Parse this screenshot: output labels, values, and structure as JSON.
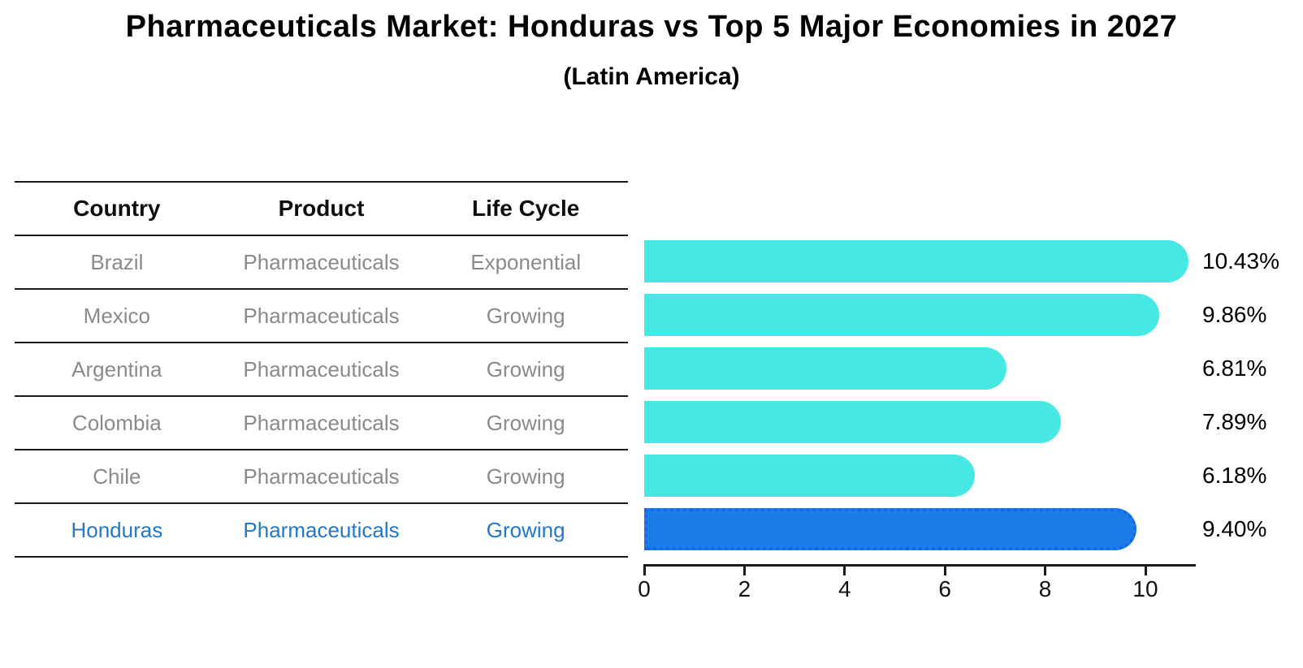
{
  "title": "Pharmaceuticals Market: Honduras vs Top 5 Major Economies in 2027",
  "subtitle": "(Latin America)",
  "table": {
    "headers": [
      "Country",
      "Product",
      "Life Cycle"
    ],
    "rows": [
      {
        "country": "Brazil",
        "product": "Pharmaceuticals",
        "life_cycle": "Exponential",
        "highlighted": false
      },
      {
        "country": "Mexico",
        "product": "Pharmaceuticals",
        "life_cycle": "Growing",
        "highlighted": false
      },
      {
        "country": "Argentina",
        "product": "Pharmaceuticals",
        "life_cycle": "Growing",
        "highlighted": false
      },
      {
        "country": "Colombia",
        "product": "Pharmaceuticals",
        "life_cycle": "Growing",
        "highlighted": false
      },
      {
        "country": "Chile",
        "product": "Pharmaceuticals",
        "life_cycle": "Growing",
        "highlighted": false
      },
      {
        "country": "Honduras",
        "product": "Pharmaceuticals",
        "life_cycle": "Growing",
        "highlighted": true
      }
    ]
  },
  "chart_data": {
    "type": "bar",
    "orientation": "horizontal",
    "title": "Pharmaceuticals Market: Honduras vs Top 5 Major Economies in 2027 (Latin America)",
    "categories": [
      "Brazil",
      "Mexico",
      "Argentina",
      "Colombia",
      "Chile",
      "Honduras"
    ],
    "values": [
      10.43,
      9.86,
      6.81,
      7.89,
      6.18,
      9.4
    ],
    "value_labels": [
      "10.43%",
      "9.86%",
      "6.81%",
      "7.89%",
      "6.18%",
      "9.40%"
    ],
    "unit": "percent",
    "xlim": [
      0,
      11
    ],
    "x_ticks": [
      "0",
      "2",
      "4",
      "6",
      "8",
      "10"
    ],
    "grid": false,
    "legend": "none",
    "highlight_index": 5
  },
  "colors": {
    "bar": "#45E8E3",
    "highlight_bar": "#1B7BE8",
    "highlight_text": "#2477C9",
    "table_text": "#8a8a8a",
    "header_text": "#0d0d0d",
    "axis": "#1a1a1a"
  }
}
